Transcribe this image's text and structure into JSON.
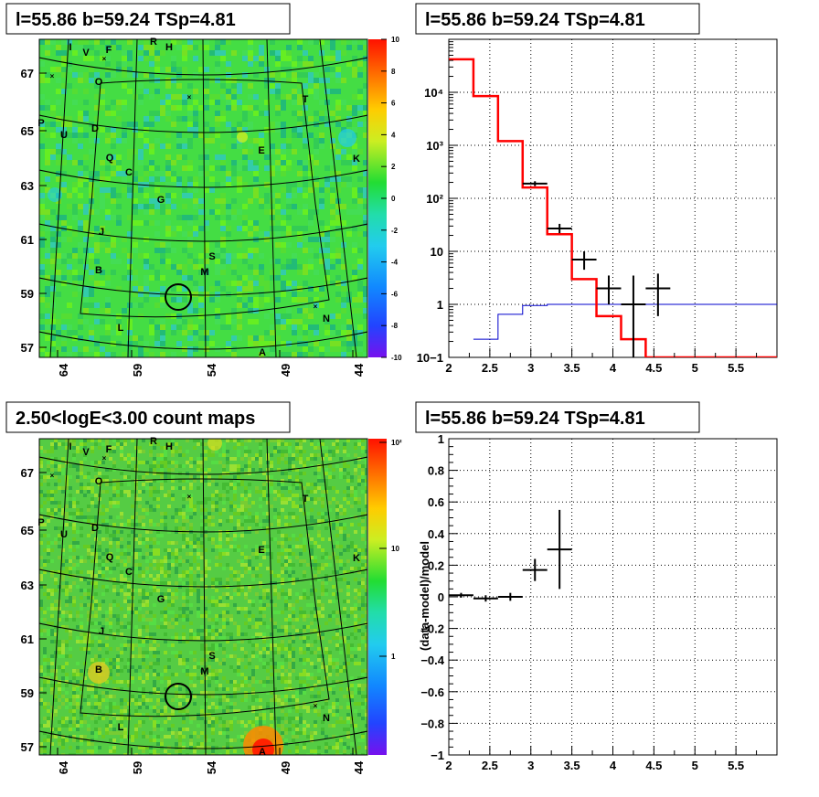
{
  "titles": {
    "top_left": "l=55.86 b=59.24 TSp=4.81",
    "top_right": "l=55.86 b=59.24 TSp=4.81",
    "bottom_left": "2.50<logE<3.00 count maps",
    "bottom_right": "l=55.86 b=59.24 TSp=4.81"
  },
  "colors": {
    "model": "#ff0000",
    "component": "#0000cc",
    "data": "#000000",
    "map_bg": "#44dd44"
  },
  "chart_data": [
    {
      "type": "heatmap",
      "name": "residual significance map",
      "x_ticks": [
        "64",
        "59",
        "54",
        "49",
        "44"
      ],
      "y_ticks": [
        "67",
        "65",
        "63",
        "61",
        "59",
        "57"
      ],
      "colorbar": {
        "min": -10,
        "max": 10,
        "ticks": [
          "10",
          "8",
          "6",
          "4",
          "2",
          "0",
          "-2",
          "-4",
          "-6",
          "-8",
          "-10"
        ]
      },
      "sources": [
        "I",
        "V",
        "F",
        "R",
        "H",
        "O",
        "T",
        "P",
        "U",
        "D",
        "E",
        "K",
        "Q",
        "C",
        "G",
        "J",
        "S",
        "B",
        "M",
        "N",
        "L",
        "A"
      ]
    },
    {
      "type": "line",
      "name": "spectrum",
      "xlim": [
        2,
        6
      ],
      "ylim": [
        0.1,
        100000
      ],
      "ylog": true,
      "grid": true,
      "x_ticks": [
        "2",
        "2.5",
        "3",
        "3.5",
        "4",
        "4.5",
        "5",
        "5.5"
      ],
      "y_ticks": [
        "10−1",
        "1",
        "10",
        "10²",
        "10³",
        "10⁴"
      ],
      "series": [
        {
          "role": "model",
          "bins": [
            2.0,
            2.3,
            2.6,
            2.9,
            3.2,
            3.5,
            3.8,
            4.1,
            4.4,
            6.0
          ],
          "values": [
            42000,
            8500,
            1200,
            160,
            21,
            3.0,
            0.6,
            0.22,
            0.1
          ]
        },
        {
          "role": "component",
          "bins": [
            2.3,
            2.6,
            2.9,
            3.2,
            6.0
          ],
          "values": [
            0.22,
            0.65,
            0.95,
            1.0
          ]
        },
        {
          "role": "data",
          "x": [
            3.05,
            3.35,
            3.65,
            3.95,
            4.25,
            4.55
          ],
          "xerr": 0.15,
          "y": [
            190,
            27,
            7,
            2,
            1,
            2
          ],
          "ylo": [
            170,
            22,
            4.5,
            1.0,
            0.1,
            0.6
          ],
          "yhi": [
            210,
            33,
            10,
            3.5,
            3.5,
            3.8
          ]
        }
      ]
    },
    {
      "type": "heatmap",
      "name": "count map",
      "x_ticks": [
        "64",
        "59",
        "54",
        "49",
        "44"
      ],
      "y_ticks": [
        "67",
        "65",
        "63",
        "61",
        "59",
        "57"
      ],
      "colorbar": {
        "ticks": [
          "10²",
          "10",
          "1"
        ]
      },
      "sources": [
        "I",
        "V",
        "F",
        "R",
        "H",
        "O",
        "T",
        "P",
        "U",
        "D",
        "E",
        "K",
        "Q",
        "C",
        "G",
        "J",
        "S",
        "B",
        "M",
        "N",
        "L",
        "A"
      ]
    },
    {
      "type": "scatter",
      "name": "residuals",
      "ylabel": "(data-model)/model",
      "xlim": [
        2,
        6
      ],
      "ylim": [
        -1,
        1
      ],
      "grid": true,
      "x_ticks": [
        "2",
        "2.5",
        "3",
        "3.5",
        "4",
        "4.5",
        "5",
        "5.5"
      ],
      "y_ticks": [
        "1",
        "0.8",
        "0.6",
        "0.4",
        "0.2",
        "0",
        "−0.2",
        "−0.4",
        "−0.6",
        "−0.8",
        "−1"
      ],
      "x": [
        2.15,
        2.45,
        2.75,
        3.05,
        3.35
      ],
      "xerr": 0.15,
      "y": [
        0.01,
        -0.01,
        0.0,
        0.17,
        0.3
      ],
      "yerr": [
        0.015,
        0.02,
        0.025,
        0.07,
        0.25
      ]
    }
  ]
}
